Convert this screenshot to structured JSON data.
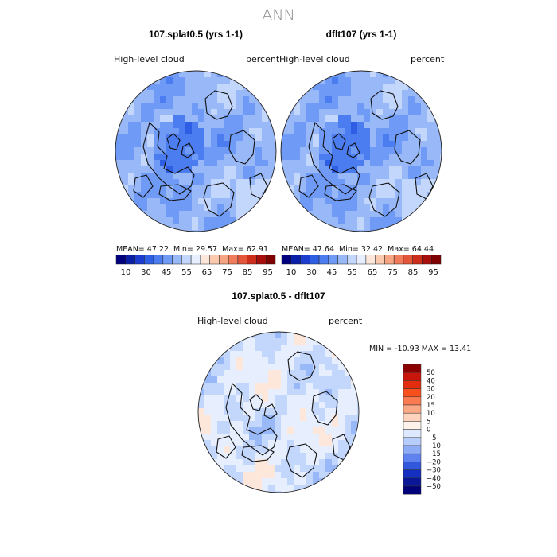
{
  "page": {
    "main_title": "ANN",
    "palette": [
      "#00007f",
      "#0a1fa8",
      "#1c3ccf",
      "#2e5ee4",
      "#4b7cf0",
      "#6f9af5",
      "#98b8f8",
      "#c3d6fb",
      "#e7efff",
      "#fde7db",
      "#fbc9ae",
      "#f6a482",
      "#f07c5c",
      "#e4563a",
      "#cd2e1c",
      "#a80e0c",
      "#7f0000"
    ]
  },
  "chart_data": [
    {
      "type": "heatmap",
      "title": "107.splat0.5 (yrs 1-1)",
      "variable": "High-level cloud",
      "units": "percent",
      "mean_label": "MEAN=",
      "mean": "47.22",
      "min_label": "Min=",
      "min": "29.57",
      "max_label": "Max=",
      "max": "62.91",
      "colorbar_ticks": [
        "10",
        "30",
        "45",
        "55",
        "65",
        "75",
        "85",
        "95"
      ]
    },
    {
      "type": "heatmap",
      "title": "dflt107 (yrs 1-1)",
      "variable": "High-level cloud",
      "units": "percent",
      "mean_label": "MEAN=",
      "mean": "47.64",
      "min_label": "Min=",
      "min": "32.42",
      "max_label": "Max=",
      "max": "64.44",
      "colorbar_ticks": [
        "10",
        "30",
        "45",
        "55",
        "65",
        "75",
        "85",
        "95"
      ]
    },
    {
      "type": "heatmap",
      "title": "107.splat0.5 - dflt107",
      "variable": "High-level cloud",
      "units": "percent",
      "min_label": "MIN =",
      "min": "-10.93",
      "max_label": "MAX =",
      "max": "13.41",
      "colorbar_levels": [
        "50",
        "40",
        "30",
        "20",
        "15",
        "10",
        "5",
        "0",
        "-5",
        "-10",
        "-15",
        "-20",
        "-30",
        "-40",
        "-50"
      ],
      "colorbar_colors": [
        "#8b0000",
        "#c8160d",
        "#e22c0e",
        "#f7501c",
        "#fa7a52",
        "#fba886",
        "#fdd3bd",
        "#fff2ea",
        "#dde9ff",
        "#b7cdfb",
        "#8eabf6",
        "#5f82ee",
        "#3157dc",
        "#1430c0",
        "#0a1796",
        "#000078"
      ]
    }
  ]
}
